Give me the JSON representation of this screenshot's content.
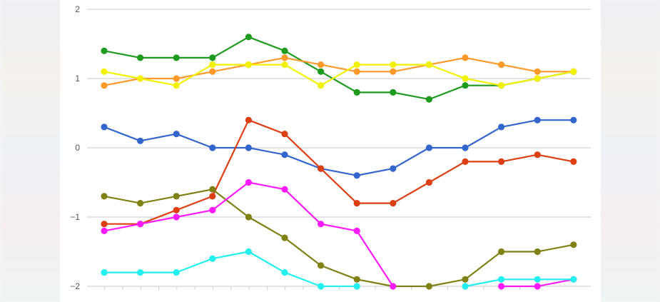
{
  "chart_data": {
    "type": "line",
    "title": "",
    "xlabel": "",
    "ylabel": "",
    "ylim": [
      -2,
      2
    ],
    "yticks": [
      {
        "value": 2,
        "label": "2"
      },
      {
        "value": 1,
        "label": "1"
      },
      {
        "value": 0,
        "label": "0"
      },
      {
        "value": -1,
        "label": "−1"
      },
      {
        "value": -2,
        "label": "−2"
      }
    ],
    "x": [
      1,
      2,
      3,
      4,
      5,
      6,
      7,
      8,
      9,
      10,
      11,
      12,
      13,
      14
    ],
    "grid": true,
    "series": [
      {
        "color": "#1e9a1e",
        "values": [
          1.4,
          1.3,
          1.3,
          1.3,
          1.6,
          1.4,
          1.1,
          0.8,
          0.8,
          0.7,
          0.9,
          0.9,
          1.0,
          1.1
        ]
      },
      {
        "color": "#ff9a2a",
        "values": [
          0.9,
          1.0,
          1.0,
          1.1,
          1.2,
          1.3,
          1.2,
          1.1,
          1.1,
          1.2,
          1.3,
          1.2,
          1.1,
          1.1
        ]
      },
      {
        "color": "#f2f200",
        "values": [
          1.1,
          1.0,
          0.9,
          1.2,
          1.2,
          1.2,
          0.9,
          1.2,
          1.2,
          1.2,
          1.0,
          0.9,
          1.0,
          1.1
        ]
      },
      {
        "color": "#3366cc",
        "values": [
          0.3,
          0.1,
          0.2,
          0.0,
          0.0,
          -0.1,
          -0.3,
          -0.4,
          -0.3,
          0.0,
          0.0,
          0.3,
          0.4,
          0.4
        ]
      },
      {
        "color": "#dd3f14",
        "values": [
          -1.1,
          -1.1,
          -0.9,
          -0.7,
          0.4,
          0.2,
          -0.3,
          -0.8,
          -0.8,
          -0.5,
          -0.2,
          -0.2,
          -0.1,
          -0.2
        ]
      },
      {
        "color": "#808015",
        "values": [
          -0.7,
          -0.8,
          -0.7,
          -0.6,
          -1.0,
          -1.3,
          -1.7,
          -1.9,
          -2.0,
          -2.0,
          -1.9,
          -1.5,
          -1.5,
          -1.4
        ]
      },
      {
        "color": "#ff1aff",
        "values": [
          -1.2,
          -1.1,
          -1.0,
          -0.9,
          -0.5,
          -0.6,
          -1.1,
          -1.2,
          -2.0,
          null,
          null,
          -2.0,
          -2.0,
          -1.9
        ]
      },
      {
        "color": "#22f0f0",
        "values": [
          -1.8,
          -1.8,
          -1.8,
          -1.6,
          -1.5,
          -1.8,
          -2.0,
          -2.0,
          null,
          null,
          -2.0,
          -1.9,
          -1.9,
          -1.9
        ]
      }
    ]
  }
}
